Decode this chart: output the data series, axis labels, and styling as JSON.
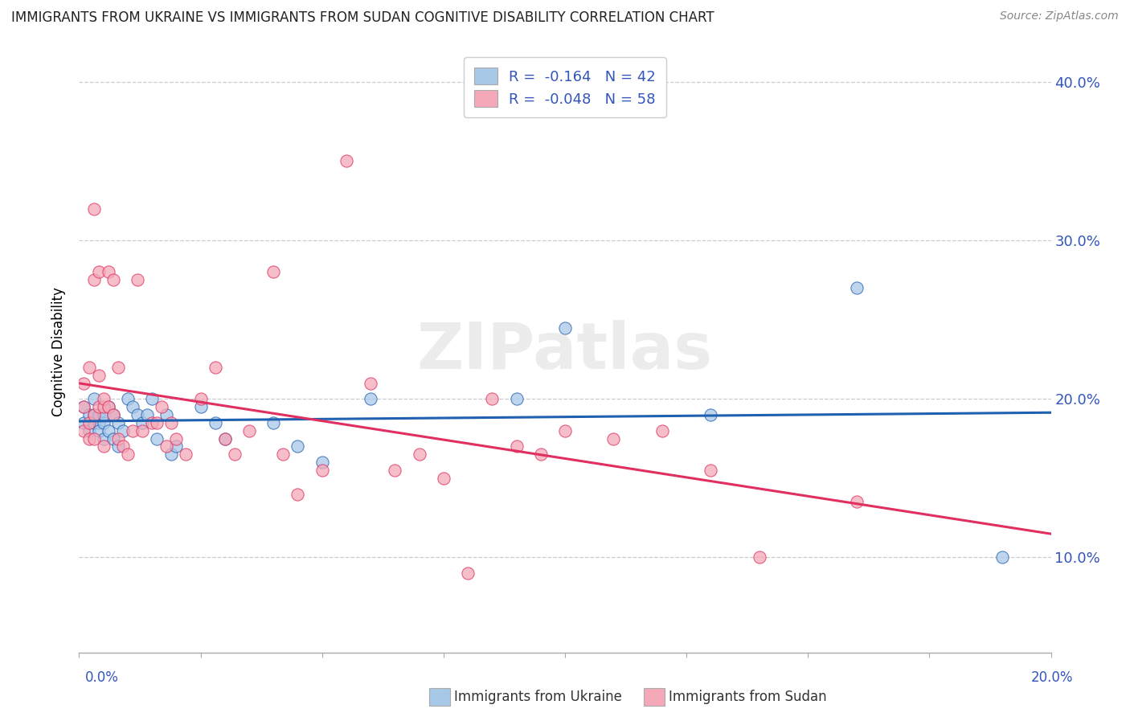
{
  "title": "IMMIGRANTS FROM UKRAINE VS IMMIGRANTS FROM SUDAN COGNITIVE DISABILITY CORRELATION CHART",
  "source": "Source: ZipAtlas.com",
  "ylabel": "Cognitive Disability",
  "watermark": "ZIPatlas",
  "legend_ukraine": {
    "R": -0.164,
    "N": 42,
    "label": "Immigrants from Ukraine"
  },
  "legend_sudan": {
    "R": -0.048,
    "N": 58,
    "label": "Immigrants from Sudan"
  },
  "color_ukraine": "#a8c8e8",
  "color_sudan": "#f4a8b8",
  "color_ukraine_line": "#2060b0",
  "color_sudan_line": "#e03060",
  "xlim": [
    0.0,
    0.2
  ],
  "ylim": [
    0.04,
    0.42
  ],
  "ukraine_x": [
    0.001,
    0.001,
    0.002,
    0.002,
    0.003,
    0.003,
    0.003,
    0.004,
    0.004,
    0.004,
    0.005,
    0.005,
    0.005,
    0.006,
    0.006,
    0.007,
    0.007,
    0.008,
    0.008,
    0.009,
    0.01,
    0.011,
    0.012,
    0.013,
    0.014,
    0.015,
    0.016,
    0.018,
    0.019,
    0.02,
    0.025,
    0.028,
    0.03,
    0.04,
    0.045,
    0.05,
    0.06,
    0.09,
    0.1,
    0.13,
    0.16,
    0.19
  ],
  "ukraine_y": [
    0.195,
    0.185,
    0.19,
    0.18,
    0.185,
    0.19,
    0.2,
    0.185,
    0.19,
    0.18,
    0.175,
    0.185,
    0.19,
    0.195,
    0.18,
    0.19,
    0.175,
    0.17,
    0.185,
    0.18,
    0.2,
    0.195,
    0.19,
    0.185,
    0.19,
    0.2,
    0.175,
    0.19,
    0.165,
    0.17,
    0.195,
    0.185,
    0.175,
    0.185,
    0.17,
    0.16,
    0.2,
    0.2,
    0.245,
    0.19,
    0.27,
    0.1
  ],
  "sudan_x": [
    0.001,
    0.001,
    0.001,
    0.002,
    0.002,
    0.002,
    0.003,
    0.003,
    0.003,
    0.003,
    0.004,
    0.004,
    0.004,
    0.005,
    0.005,
    0.005,
    0.006,
    0.006,
    0.007,
    0.007,
    0.008,
    0.008,
    0.009,
    0.01,
    0.011,
    0.012,
    0.013,
    0.015,
    0.016,
    0.017,
    0.018,
    0.019,
    0.02,
    0.022,
    0.025,
    0.028,
    0.03,
    0.032,
    0.035,
    0.04,
    0.042,
    0.045,
    0.05,
    0.055,
    0.06,
    0.065,
    0.07,
    0.075,
    0.08,
    0.085,
    0.09,
    0.095,
    0.1,
    0.11,
    0.12,
    0.13,
    0.14,
    0.16
  ],
  "sudan_y": [
    0.195,
    0.21,
    0.18,
    0.185,
    0.22,
    0.175,
    0.275,
    0.32,
    0.19,
    0.175,
    0.215,
    0.195,
    0.28,
    0.195,
    0.2,
    0.17,
    0.28,
    0.195,
    0.19,
    0.275,
    0.22,
    0.175,
    0.17,
    0.165,
    0.18,
    0.275,
    0.18,
    0.185,
    0.185,
    0.195,
    0.17,
    0.185,
    0.175,
    0.165,
    0.2,
    0.22,
    0.175,
    0.165,
    0.18,
    0.28,
    0.165,
    0.14,
    0.155,
    0.35,
    0.21,
    0.155,
    0.165,
    0.15,
    0.09,
    0.2,
    0.17,
    0.165,
    0.18,
    0.175,
    0.18,
    0.155,
    0.1,
    0.135
  ],
  "yticks": [
    0.1,
    0.2,
    0.3,
    0.4
  ],
  "ytick_labels": [
    "10.0%",
    "20.0%",
    "30.0%",
    "40.0%"
  ],
  "xticks": [
    0.0,
    0.025,
    0.05,
    0.075,
    0.1,
    0.125,
    0.15,
    0.175,
    0.2
  ],
  "background_color": "#ffffff",
  "grid_color": "#cccccc"
}
